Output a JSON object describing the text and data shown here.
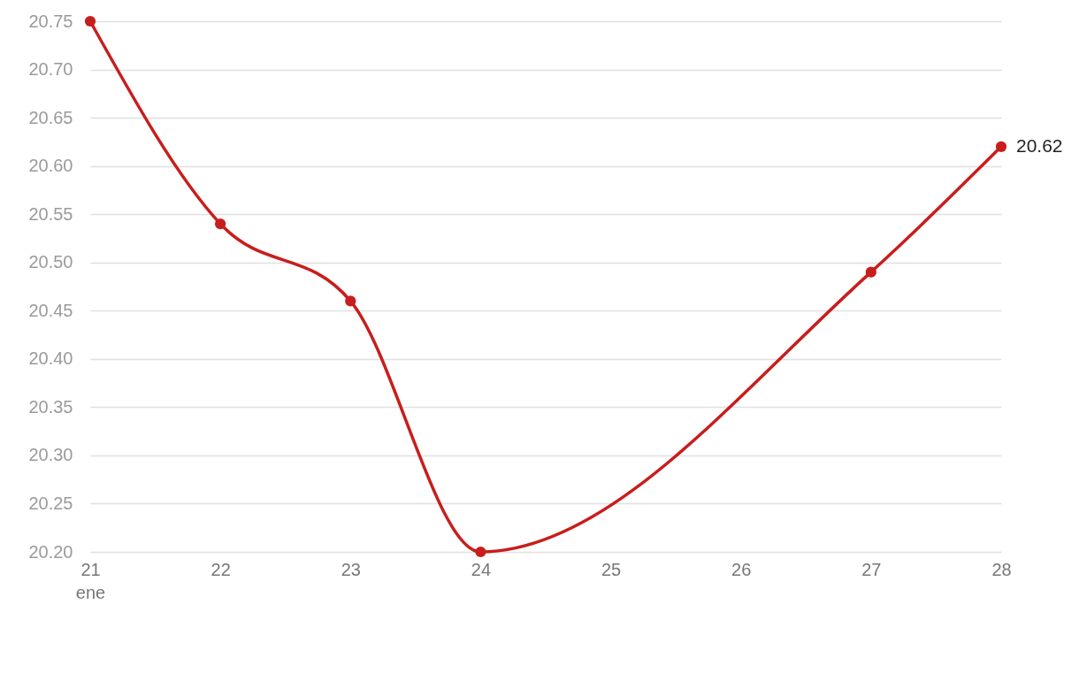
{
  "chart_data": {
    "type": "line",
    "x": [
      "--01-21",
      "--01-22",
      "--01-23",
      "--01-24",
      "--01-27",
      "--01-28"
    ],
    "series": [
      {
        "color": "#c71e1d",
        "values": [
          20.75,
          20.54,
          20.46,
          20.2,
          20.49,
          20.62
        ],
        "value_labels": [
          null,
          null,
          null,
          null,
          null,
          "20.62"
        ]
      }
    ],
    "xlim": [
      "--01-21",
      "--01-28"
    ],
    "xticks": [
      {
        "value": "--01-21",
        "label": "21\nene"
      },
      {
        "value": "--01-22",
        "label": "22"
      },
      {
        "value": "--01-23",
        "label": "23"
      },
      {
        "value": "--01-24",
        "label": "24"
      },
      {
        "value": "--01-25",
        "label": "25"
      },
      {
        "value": "--01-26",
        "label": "26"
      },
      {
        "value": "--01-27",
        "label": "27"
      },
      {
        "value": "--01-28",
        "label": "28"
      }
    ],
    "ylim": [
      20.2,
      20.75
    ],
    "yticks": [
      {
        "value": 20.2,
        "label": "20.20"
      },
      {
        "value": 20.25,
        "label": "20.25"
      },
      {
        "value": 20.3,
        "label": "20.30"
      },
      {
        "value": 20.35,
        "label": "20.35"
      },
      {
        "value": 20.4,
        "label": "20.40"
      },
      {
        "value": 20.45,
        "label": "20.45"
      },
      {
        "value": 20.5,
        "label": "20.50"
      },
      {
        "value": 20.55,
        "label": "20.55"
      },
      {
        "value": 20.6,
        "label": "20.60"
      },
      {
        "value": 20.65,
        "label": "20.65"
      },
      {
        "value": 20.7,
        "label": "20.70"
      },
      {
        "value": 20.75,
        "label": "20.75"
      }
    ],
    "grid": "y",
    "marker": "circle",
    "line_style": "solid"
  }
}
